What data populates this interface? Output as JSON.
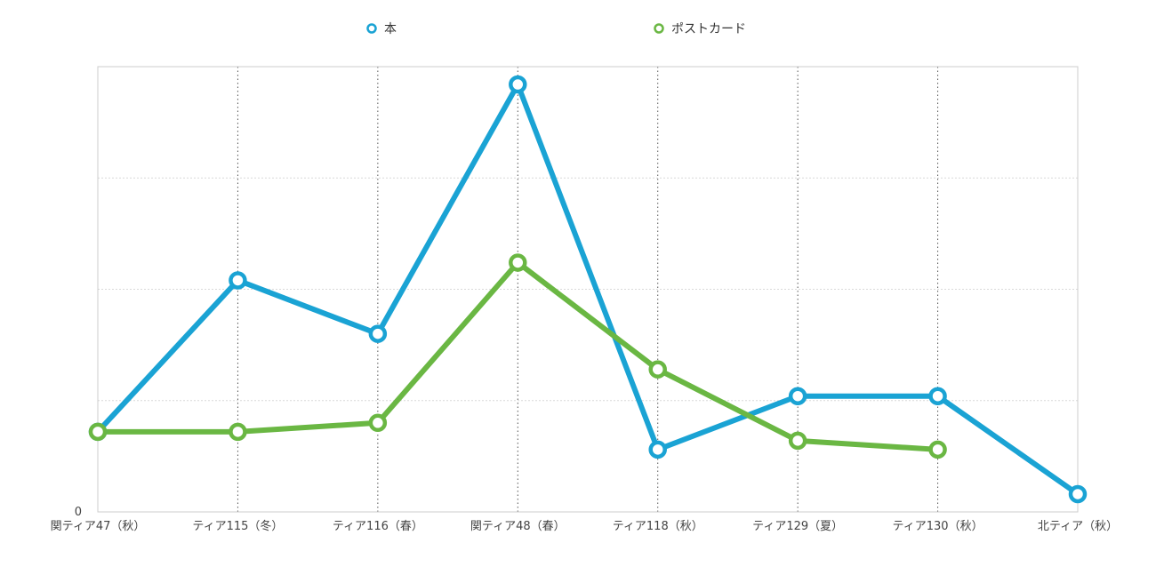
{
  "chart_data": {
    "type": "line",
    "title": "",
    "xlabel": "",
    "ylabel": "",
    "categories": [
      "関ティア47（秋）",
      "ティア115（冬）",
      "ティア116（春）",
      "関ティア48（春）",
      "ティア118（秋）",
      "ティア129（夏）",
      "ティア130（秋）",
      "北ティア（秋）"
    ],
    "y_tick_labels": [
      "0"
    ],
    "ylim": [
      0,
      100
    ],
    "grid": true,
    "legend_position": "top",
    "series": [
      {
        "name": "本",
        "color": "#1aa3d4",
        "values": [
          18,
          52,
          40,
          96,
          14,
          26,
          26,
          4
        ]
      },
      {
        "name": "ポストカード",
        "color": "#6ab743",
        "values": [
          18,
          18,
          20,
          56,
          32,
          16,
          14,
          null
        ]
      }
    ]
  }
}
